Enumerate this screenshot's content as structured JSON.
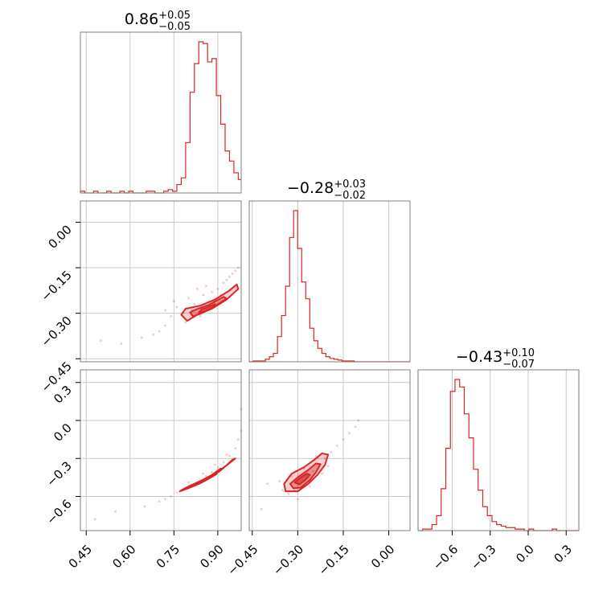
{
  "chart_data": {
    "type": "corner",
    "color": "#d62728",
    "grid": true,
    "parameters": [
      {
        "title_value": "0.86",
        "title_plus": "+0.05",
        "title_minus": "−0.05",
        "range": [
          0.43,
          0.98
        ],
        "ticks": [
          0.45,
          0.6,
          0.75,
          0.9
        ],
        "tick_labels": [
          "0.45",
          "0.60",
          "0.75",
          "0.90"
        ],
        "hist_bins": [
          0.43,
          0.445,
          0.46,
          0.475,
          0.49,
          0.505,
          0.52,
          0.535,
          0.55,
          0.565,
          0.58,
          0.595,
          0.61,
          0.625,
          0.64,
          0.655,
          0.67,
          0.685,
          0.7,
          0.715,
          0.73,
          0.745,
          0.76,
          0.775,
          0.79,
          0.805,
          0.82,
          0.835,
          0.85,
          0.865,
          0.88,
          0.895,
          0.91,
          0.925,
          0.94,
          0.955,
          0.97,
          0.98
        ],
        "hist_counts": [
          1,
          0,
          0,
          1,
          0,
          0,
          1,
          0,
          0,
          1,
          0,
          1,
          0,
          0,
          0,
          1,
          1,
          0,
          0,
          1,
          2,
          1,
          5,
          9,
          30,
          60,
          77,
          90,
          89,
          78,
          80,
          58,
          41,
          25,
          19,
          12,
          8
        ]
      },
      {
        "title_value": "−0.28",
        "title_plus": "+0.03",
        "title_minus": "−0.02",
        "range": [
          -0.46,
          0.07
        ],
        "ticks": [
          -0.45,
          -0.3,
          -0.15,
          0.0
        ],
        "tick_labels": [
          "−0.45",
          "−0.30",
          "−0.15",
          "0.00"
        ],
        "hist_bins": [
          -0.46,
          -0.4467,
          -0.4334,
          -0.4201,
          -0.4068,
          -0.3935,
          -0.3802,
          -0.3669,
          -0.3536,
          -0.3403,
          -0.327,
          -0.3137,
          -0.3004,
          -0.2871,
          -0.2738,
          -0.2605,
          -0.2472,
          -0.2339,
          -0.2206,
          -0.2073,
          -0.194,
          -0.1807,
          -0.1674,
          -0.1541,
          -0.1408,
          -0.1275,
          -0.1142,
          -0.1009,
          -0.0876,
          -0.0743,
          -0.061,
          -0.0477,
          -0.0344,
          -0.0211,
          -0.0078,
          0.0055,
          0.07
        ],
        "hist_counts": [
          0,
          1,
          1,
          1,
          3,
          6,
          10,
          30,
          55,
          90,
          148,
          180,
          135,
          95,
          75,
          40,
          25,
          16,
          10,
          6,
          4,
          3,
          2,
          1,
          1,
          1,
          0,
          0,
          0,
          0,
          0,
          0,
          0,
          0,
          0,
          0
        ]
      },
      {
        "title_value": "−0.43",
        "title_plus": "+0.10",
        "title_minus": "−0.07",
        "range": [
          -0.87,
          0.4
        ],
        "ticks": [
          -0.6,
          -0.3,
          0.0,
          0.3
        ],
        "tick_labels": [
          "−0.6",
          "−0.3",
          "0.0",
          "0.3"
        ],
        "hist_bins": [
          -0.87,
          -0.8335,
          -0.797,
          -0.7605,
          -0.724,
          -0.6875,
          -0.651,
          -0.6145,
          -0.578,
          -0.5415,
          -0.505,
          -0.4685,
          -0.432,
          -0.3955,
          -0.359,
          -0.3225,
          -0.286,
          -0.2495,
          -0.213,
          -0.1765,
          -0.14,
          -0.1035,
          -0.067,
          -0.0305,
          0.006,
          0.0425,
          0.079,
          0.1155,
          0.152,
          0.1885,
          0.225,
          0.2615,
          0.298,
          0.3345,
          0.4
        ],
        "hist_counts": [
          0,
          1,
          1,
          4,
          10,
          28,
          55,
          93,
          101,
          96,
          78,
          62,
          41,
          27,
          16,
          10,
          6,
          4,
          3,
          2,
          2,
          1,
          1,
          0,
          1,
          0,
          0,
          0,
          0,
          1,
          0,
          0,
          0,
          0
        ]
      }
    ],
    "contour_panels": [
      {
        "x_param": 0,
        "y_param": 1,
        "scatter": [
          [
            0.76,
            -0.28
          ],
          [
            0.78,
            -0.3
          ],
          [
            0.8,
            -0.25
          ],
          [
            0.82,
            -0.27
          ],
          [
            0.85,
            -0.24
          ],
          [
            0.88,
            -0.23
          ],
          [
            0.9,
            -0.22
          ],
          [
            0.92,
            -0.2
          ],
          [
            0.94,
            -0.18
          ],
          [
            0.95,
            -0.17
          ],
          [
            0.96,
            -0.16
          ],
          [
            0.97,
            -0.15
          ],
          [
            0.79,
            -0.33
          ],
          [
            0.74,
            -0.31
          ],
          [
            0.72,
            -0.34
          ],
          [
            0.7,
            -0.36
          ],
          [
            0.68,
            -0.37
          ],
          [
            0.75,
            -0.26
          ],
          [
            0.81,
            -0.29
          ],
          [
            0.84,
            -0.31
          ],
          [
            0.87,
            -0.26
          ],
          [
            0.91,
            -0.24
          ],
          [
            0.83,
            -0.22
          ],
          [
            0.86,
            -0.21
          ],
          [
            0.72,
            -0.29
          ],
          [
            0.64,
            -0.38
          ],
          [
            0.57,
            -0.4
          ],
          [
            0.5,
            -0.39
          ],
          [
            0.93,
            -0.19
          ],
          [
            0.89,
            -0.27
          ]
        ],
        "levels": [
          [
            [
              0.795,
              -0.325
            ],
            [
              0.775,
              -0.305
            ],
            [
              0.79,
              -0.285
            ],
            [
              0.84,
              -0.275
            ],
            [
              0.89,
              -0.255
            ],
            [
              0.94,
              -0.225
            ],
            [
              0.965,
              -0.205
            ],
            [
              0.97,
              -0.22
            ],
            [
              0.93,
              -0.255
            ],
            [
              0.88,
              -0.285
            ],
            [
              0.83,
              -0.305
            ]
          ],
          [
            [
              0.815,
              -0.31
            ],
            [
              0.805,
              -0.297
            ],
            [
              0.83,
              -0.286
            ],
            [
              0.87,
              -0.272
            ],
            [
              0.92,
              -0.246
            ],
            [
              0.93,
              -0.252
            ],
            [
              0.88,
              -0.283
            ],
            [
              0.84,
              -0.302
            ]
          ],
          [
            [
              0.835,
              -0.298
            ],
            [
              0.845,
              -0.287
            ],
            [
              0.87,
              -0.278
            ],
            [
              0.89,
              -0.27
            ],
            [
              0.885,
              -0.28
            ],
            [
              0.855,
              -0.294
            ]
          ]
        ]
      },
      {
        "x_param": 0,
        "y_param": 2,
        "scatter": [
          [
            0.74,
            -0.6
          ],
          [
            0.76,
            -0.57
          ],
          [
            0.78,
            -0.55
          ],
          [
            0.8,
            -0.52
          ],
          [
            0.82,
            -0.5
          ],
          [
            0.84,
            -0.47
          ],
          [
            0.86,
            -0.44
          ],
          [
            0.88,
            -0.41
          ],
          [
            0.9,
            -0.37
          ],
          [
            0.92,
            -0.33
          ],
          [
            0.94,
            -0.28
          ],
          [
            0.96,
            -0.22
          ],
          [
            0.97,
            -0.15
          ],
          [
            0.98,
            -0.08
          ],
          [
            0.98,
            0.09
          ],
          [
            0.72,
            -0.62
          ],
          [
            0.7,
            -0.64
          ],
          [
            0.65,
            -0.68
          ],
          [
            0.8,
            -0.49
          ],
          [
            0.85,
            -0.42
          ],
          [
            0.89,
            -0.35
          ],
          [
            0.93,
            -0.27
          ],
          [
            0.55,
            -0.72
          ],
          [
            0.48,
            -0.78
          ]
        ],
        "levels": [
          [
            [
              0.77,
              -0.56
            ],
            [
              0.8,
              -0.535
            ],
            [
              0.84,
              -0.495
            ],
            [
              0.88,
              -0.445
            ],
            [
              0.92,
              -0.375
            ],
            [
              0.95,
              -0.31
            ],
            [
              0.96,
              -0.3
            ],
            [
              0.93,
              -0.355
            ],
            [
              0.89,
              -0.42
            ],
            [
              0.85,
              -0.47
            ],
            [
              0.81,
              -0.51
            ],
            [
              0.78,
              -0.545
            ]
          ],
          [
            [
              0.8,
              -0.525
            ],
            [
              0.84,
              -0.48
            ],
            [
              0.88,
              -0.43
            ],
            [
              0.91,
              -0.38
            ],
            [
              0.915,
              -0.385
            ],
            [
              0.885,
              -0.435
            ],
            [
              0.845,
              -0.49
            ],
            [
              0.81,
              -0.525
            ]
          ],
          [
            [
              0.83,
              -0.495
            ],
            [
              0.86,
              -0.46
            ],
            [
              0.89,
              -0.42
            ],
            [
              0.895,
              -0.425
            ],
            [
              0.865,
              -0.465
            ],
            [
              0.835,
              -0.5
            ]
          ]
        ]
      },
      {
        "x_param": 1,
        "y_param": 2,
        "scatter": [
          [
            -0.33,
            -0.58
          ],
          [
            -0.31,
            -0.55
          ],
          [
            -0.29,
            -0.5
          ],
          [
            -0.27,
            -0.45
          ],
          [
            -0.25,
            -0.4
          ],
          [
            -0.23,
            -0.35
          ],
          [
            -0.21,
            -0.3
          ],
          [
            -0.19,
            -0.25
          ],
          [
            -0.17,
            -0.2
          ],
          [
            -0.15,
            -0.15
          ],
          [
            -0.13,
            -0.1
          ],
          [
            -0.11,
            -0.05
          ],
          [
            -0.35,
            -0.55
          ],
          [
            -0.3,
            -0.62
          ],
          [
            -0.26,
            -0.52
          ],
          [
            -0.22,
            -0.42
          ],
          [
            -0.28,
            -0.38
          ],
          [
            -0.36,
            -0.48
          ],
          [
            -0.2,
            -0.36
          ],
          [
            -0.24,
            -0.28
          ],
          [
            -0.32,
            -0.44
          ],
          [
            -0.4,
            -0.5
          ],
          [
            -0.42,
            -0.7
          ],
          [
            -0.1,
            0.0
          ]
        ],
        "levels": [
          [
            [
              -0.345,
              -0.5
            ],
            [
              -0.34,
              -0.56
            ],
            [
              -0.3,
              -0.56
            ],
            [
              -0.265,
              -0.5
            ],
            [
              -0.235,
              -0.43
            ],
            [
              -0.21,
              -0.35
            ],
            [
              -0.2,
              -0.27
            ],
            [
              -0.22,
              -0.26
            ],
            [
              -0.245,
              -0.31
            ],
            [
              -0.28,
              -0.37
            ],
            [
              -0.32,
              -0.42
            ]
          ],
          [
            [
              -0.325,
              -0.5
            ],
            [
              -0.315,
              -0.535
            ],
            [
              -0.29,
              -0.53
            ],
            [
              -0.26,
              -0.47
            ],
            [
              -0.24,
              -0.41
            ],
            [
              -0.225,
              -0.345
            ],
            [
              -0.24,
              -0.34
            ],
            [
              -0.265,
              -0.39
            ],
            [
              -0.295,
              -0.44
            ]
          ],
          [
            [
              -0.31,
              -0.49
            ],
            [
              -0.295,
              -0.505
            ],
            [
              -0.275,
              -0.47
            ],
            [
              -0.26,
              -0.43
            ],
            [
              -0.27,
              -0.42
            ],
            [
              -0.29,
              -0.45
            ]
          ]
        ]
      }
    ]
  }
}
